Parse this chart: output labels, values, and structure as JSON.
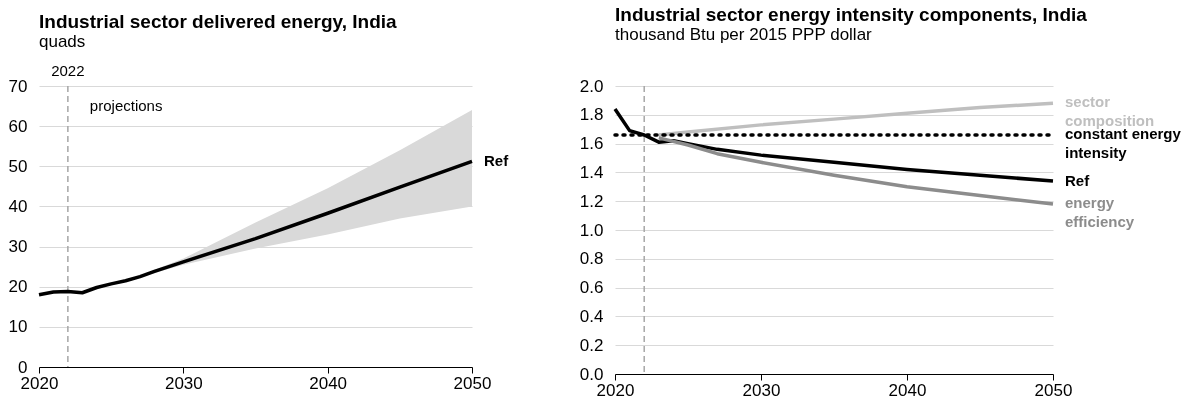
{
  "chart_data": [
    {
      "type": "line",
      "title": "Industrial sector delivered energy, India",
      "subtitle": "quads",
      "x": [
        2020,
        2021,
        2022,
        2023,
        2024,
        2025,
        2026,
        2027,
        2028,
        2030,
        2035,
        2040,
        2045,
        2050
      ],
      "series": [
        {
          "name": "Ref",
          "color": "#000000",
          "values": [
            18,
            18.7,
            18.8,
            18.5,
            19.8,
            20.7,
            21.5,
            22.5,
            23.8,
            26.2,
            32,
            38.3,
            44.8,
            51.2
          ],
          "lower": [
            null,
            null,
            null,
            null,
            null,
            null,
            21.5,
            22.3,
            23.4,
            25.5,
            29.5,
            33,
            37,
            40
          ],
          "upper": [
            null,
            null,
            null,
            null,
            null,
            null,
            21.5,
            22.7,
            24.2,
            27,
            36,
            44.5,
            54,
            64
          ]
        }
      ],
      "xlim": [
        2020,
        2050
      ],
      "xticks": [
        2020,
        2030,
        2040,
        2050
      ],
      "ylim": [
        0,
        70
      ],
      "yticks": [
        0,
        10,
        20,
        30,
        40,
        50,
        60,
        70
      ],
      "grid": "y",
      "ref_lines": [
        {
          "axis": "x",
          "value": 2022,
          "label": "2022",
          "color": "#a6a6a6",
          "line_style": "dashed"
        }
      ],
      "annotations": [
        "projections"
      ]
    },
    {
      "type": "line",
      "title": "Industrial sector energy intensity components, India",
      "subtitle": "thousand Btu per 2015 PPP dollar",
      "series": [
        {
          "name": "sector composition",
          "color": "#bfbfbf",
          "x": [
            2023,
            2025,
            2030,
            2035,
            2040,
            2045,
            2050
          ],
          "values": [
            1.66,
            1.68,
            1.73,
            1.77,
            1.81,
            1.85,
            1.88
          ]
        },
        {
          "name": "constant energy intensity",
          "color": "#000000",
          "line_style": "dotted",
          "x": [
            2020,
            2050
          ],
          "values": [
            1.66,
            1.66
          ]
        },
        {
          "name": "Ref",
          "color": "#000000",
          "x": [
            2020,
            2021,
            2022,
            2023,
            2024,
            2025,
            2027,
            2030,
            2035,
            2040,
            2045,
            2050
          ],
          "values": [
            1.84,
            1.69,
            1.66,
            1.61,
            1.62,
            1.6,
            1.56,
            1.52,
            1.47,
            1.42,
            1.38,
            1.34
          ]
        },
        {
          "name": "energy efficiency",
          "color": "#8c8c8c",
          "x": [
            2023,
            2025,
            2027,
            2030,
            2035,
            2040,
            2045,
            2050
          ],
          "values": [
            1.64,
            1.59,
            1.53,
            1.47,
            1.38,
            1.3,
            1.24,
            1.18
          ]
        }
      ],
      "xlim": [
        2020,
        2050
      ],
      "xticks": [
        2020,
        2030,
        2040,
        2050
      ],
      "ylim": [
        0,
        2
      ],
      "yticks": [
        {
          "value": 0,
          "label": "0.0"
        },
        0.2,
        0.4,
        0.6,
        0.8,
        {
          "value": 1,
          "label": "1.0"
        },
        1.2,
        1.4,
        1.6,
        1.8,
        {
          "value": 2,
          "label": "2.0"
        }
      ],
      "grid": "y",
      "ref_lines": [
        {
          "axis": "x",
          "value": 2022,
          "color": "#a6a6a6",
          "line_style": "dashed"
        }
      ]
    }
  ]
}
